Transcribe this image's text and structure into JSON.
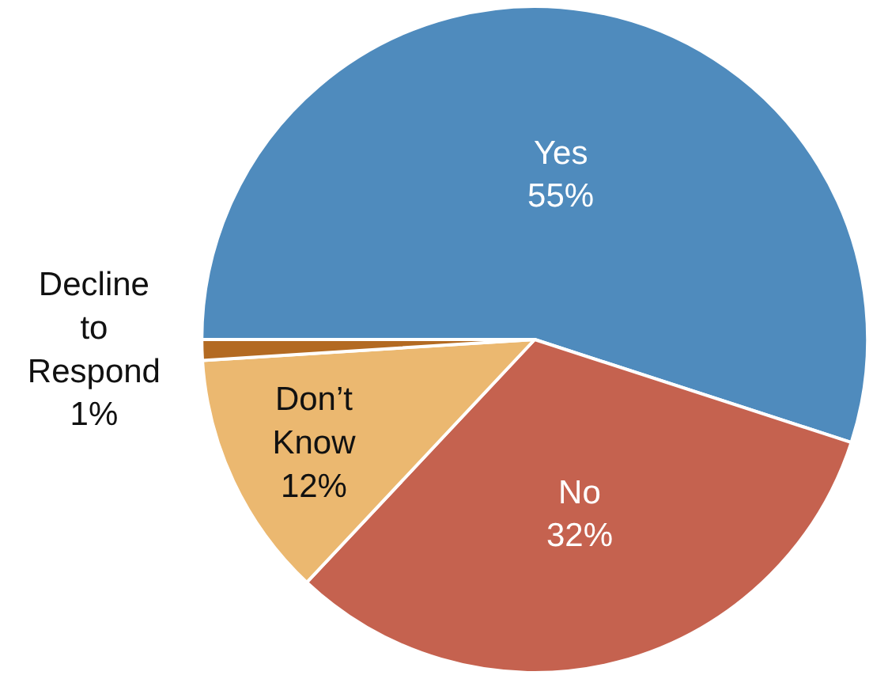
{
  "chart_data": {
    "type": "pie",
    "categories": [
      "Yes",
      "No",
      "Don’t Know",
      "Decline to Respond"
    ],
    "values": [
      55,
      32,
      12,
      1
    ],
    "colors": [
      "#4f8bbd",
      "#c5624f",
      "#ebb870",
      "#b36a22"
    ],
    "value_labels": [
      "55%",
      "32%",
      "12%",
      "1%"
    ],
    "legend": false
  }
}
